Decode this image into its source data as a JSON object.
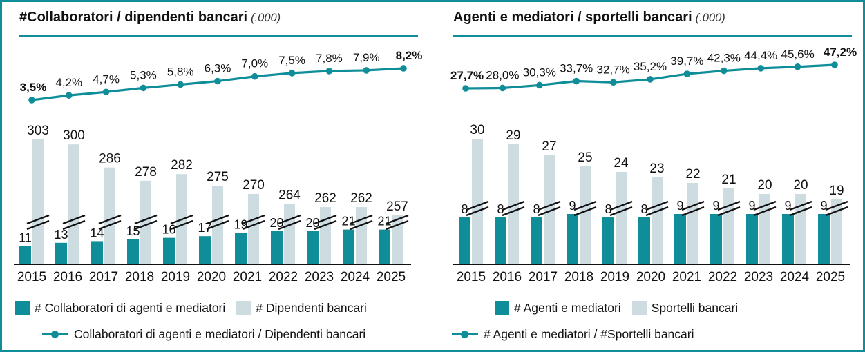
{
  "colors": {
    "accent": "#0f8e9a",
    "light_bar": "#cddce1",
    "text": "#111111",
    "frame_border": "#0f8e9a"
  },
  "chart_data": [
    {
      "type": "bar+line",
      "title": "#Collaboratori / dipendenti bancari",
      "title_note": "(.000)",
      "legend_position": "bottom",
      "axis_break_on_tall_bars": true,
      "categories": [
        "2015",
        "2016",
        "2017",
        "2018",
        "2019",
        "2020",
        "2021",
        "2022",
        "2023",
        "2024",
        "2025"
      ],
      "bar_series": [
        {
          "name": "# Collaboratori di agenti e mediatori",
          "color": "#0f8e9a",
          "values": [
            11,
            13,
            14,
            15,
            16,
            17,
            19,
            20,
            20,
            21,
            21
          ]
        },
        {
          "name": "# Dipendenti bancari",
          "color": "#cddce1",
          "axis_break": true,
          "values": [
            303,
            300,
            286,
            278,
            282,
            275,
            270,
            264,
            262,
            262,
            257
          ]
        }
      ],
      "line_series": {
        "name": "Collaboratori di agenti e mediatori / Dipendenti bancari",
        "color": "#0f8e9a",
        "values_percent": [
          3.5,
          4.2,
          4.7,
          5.3,
          5.8,
          6.3,
          7.0,
          7.5,
          7.8,
          7.9,
          8.2
        ],
        "labels": [
          "3,5%",
          "4,2%",
          "4,7%",
          "5,3%",
          "5,8%",
          "6,3%",
          "7,0%",
          "7,5%",
          "7,8%",
          "7,9%",
          "8,2%"
        ],
        "bold_label_indexes": [
          0,
          10
        ]
      }
    },
    {
      "type": "bar+line",
      "title": "Agenti e mediatori / sportelli bancari",
      "title_note": "(.000)",
      "legend_position": "bottom",
      "axis_break_on_tall_bars": true,
      "categories": [
        "2015",
        "2016",
        "2017",
        "2018",
        "2019",
        "2020",
        "2021",
        "2022",
        "2023",
        "2024",
        "2025"
      ],
      "bar_series": [
        {
          "name": "# Agenti e mediatori",
          "color": "#0f8e9a",
          "values": [
            8,
            8,
            8,
            9,
            8,
            8,
            9,
            9,
            9,
            9,
            9
          ]
        },
        {
          "name": "Sportelli bancari",
          "color": "#cddce1",
          "axis_break": true,
          "values": [
            30,
            29,
            27,
            25,
            24,
            23,
            22,
            21,
            20,
            20,
            19
          ]
        }
      ],
      "line_series": {
        "name": "# Agenti e mediatori / #Sportelli bancari",
        "color": "#0f8e9a",
        "values_percent": [
          27.7,
          28.0,
          30.3,
          33.7,
          32.7,
          35.2,
          39.7,
          42.3,
          44.4,
          45.6,
          47.2
        ],
        "labels": [
          "27,7%",
          "28,0%",
          "30,3%",
          "33,7%",
          "32,7%",
          "35,2%",
          "39,7%",
          "42,3%",
          "44,4%",
          "45,6%",
          "47,2%"
        ],
        "bold_label_indexes": [
          0,
          10
        ]
      }
    }
  ]
}
